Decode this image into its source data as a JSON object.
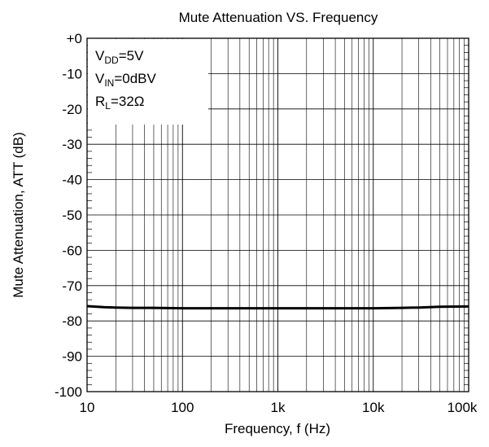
{
  "chart_data": {
    "type": "line",
    "title": "Mute Attenuation VS. Frequency",
    "xlabel": "Frequency, f (Hz)",
    "ylabel": "Mute Attenuation, ATT (dB)",
    "x_scale": "log",
    "xlim": [
      10,
      100000
    ],
    "ylim": [
      -100,
      0
    ],
    "x_ticks": [
      10,
      100,
      1000,
      10000,
      100000
    ],
    "x_tick_labels": [
      "10",
      "100",
      "1k",
      "10k",
      "100k"
    ],
    "y_ticks": [
      0,
      -10,
      -20,
      -30,
      -40,
      -50,
      -60,
      -70,
      -80,
      -90,
      -100
    ],
    "y_tick_labels": [
      "+0",
      "-10",
      "-20",
      "-30",
      "-40",
      "-50",
      "-60",
      "-70",
      "-80",
      "-90",
      "-100"
    ],
    "grid": true,
    "conditions": [
      {
        "main": "V",
        "sub": "DD",
        "rest": "=5V"
      },
      {
        "main": "V",
        "sub": "IN",
        "rest": "=0dBV"
      },
      {
        "main": "R",
        "sub": "L",
        "rest": "=32Ω"
      }
    ],
    "series": [
      {
        "x": [
          10,
          15,
          20,
          30,
          50,
          100,
          200,
          500,
          1000,
          2000,
          5000,
          10000,
          20000,
          30000,
          50000,
          100000
        ],
        "y": [
          -75.8,
          -76.1,
          -76.2,
          -76.3,
          -76.3,
          -76.4,
          -76.4,
          -76.4,
          -76.4,
          -76.4,
          -76.4,
          -76.4,
          -76.3,
          -76.2,
          -76.0,
          -75.9
        ]
      }
    ]
  }
}
